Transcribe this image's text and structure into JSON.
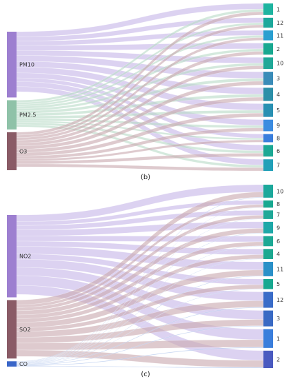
{
  "panels": [
    {
      "caption": "(b)",
      "sources": [
        {
          "id": "PM10",
          "label": "PM10",
          "color": "#9D7FD0",
          "band": "#C6B6E8"
        },
        {
          "id": "PM2.5",
          "label": "PM2.5",
          "color": "#8FC2A8",
          "band": "#B9DCC8"
        },
        {
          "id": "O3",
          "label": "O3",
          "color": "#8A5B66",
          "band": "#C9A9B0"
        }
      ],
      "targets": [
        {
          "id": "1",
          "label": "1",
          "color": "#1EB4A0"
        },
        {
          "id": "12",
          "label": "12",
          "color": "#1CA89B"
        },
        {
          "id": "11",
          "label": "11",
          "color": "#2A9FD0"
        },
        {
          "id": "2",
          "label": "2",
          "color": "#18A890"
        },
        {
          "id": "10",
          "label": "10",
          "color": "#20A898"
        },
        {
          "id": "3",
          "label": "3",
          "color": "#3A8CB8"
        },
        {
          "id": "4",
          "label": "4",
          "color": "#2C8FA8"
        },
        {
          "id": "5",
          "label": "5",
          "color": "#2890B2"
        },
        {
          "id": "9",
          "label": "9",
          "color": "#3C8CE0"
        },
        {
          "id": "8",
          "label": "8",
          "color": "#3A7EDC"
        },
        {
          "id": "6",
          "label": "6",
          "color": "#1CA894"
        },
        {
          "id": "7",
          "label": "7",
          "color": "#22A0B8"
        }
      ],
      "source_values": [
        45,
        20,
        26
      ],
      "target_values": [
        7,
        6,
        6,
        7,
        7,
        8,
        8,
        8,
        7,
        5,
        7,
        7
      ]
    },
    {
      "caption": "(c)",
      "sources": [
        {
          "id": "NO2",
          "label": "NO2",
          "color": "#9D7FD0",
          "band": "#C6B6E8"
        },
        {
          "id": "SO2",
          "label": "SO2",
          "color": "#8A5B66",
          "band": "#C9A9B0"
        },
        {
          "id": "CO",
          "label": "CO",
          "color": "#3A66C8",
          "band": "#9EB8E8"
        }
      ],
      "targets": [
        {
          "id": "10",
          "label": "10",
          "color": "#1CA89B"
        },
        {
          "id": "8",
          "label": "8",
          "color": "#18A890"
        },
        {
          "id": "7",
          "label": "7",
          "color": "#20A898"
        },
        {
          "id": "9",
          "label": "9",
          "color": "#1EA8A8"
        },
        {
          "id": "6",
          "label": "6",
          "color": "#1CA894"
        },
        {
          "id": "4",
          "label": "4",
          "color": "#1CA890"
        },
        {
          "id": "11",
          "label": "11",
          "color": "#2A90C8"
        },
        {
          "id": "5",
          "label": "5",
          "color": "#18A890"
        },
        {
          "id": "12",
          "label": "12",
          "color": "#3A6CC8"
        },
        {
          "id": "3",
          "label": "3",
          "color": "#3A6AC4"
        },
        {
          "id": "1",
          "label": "1",
          "color": "#3A7EDC"
        },
        {
          "id": "2",
          "label": "2",
          "color": "#4A5AC0"
        }
      ],
      "source_values": [
        62,
        44,
        4
      ],
      "target_values": [
        9,
        5,
        6,
        8,
        7,
        7,
        10,
        7,
        11,
        11,
        13,
        12
      ]
    }
  ]
}
